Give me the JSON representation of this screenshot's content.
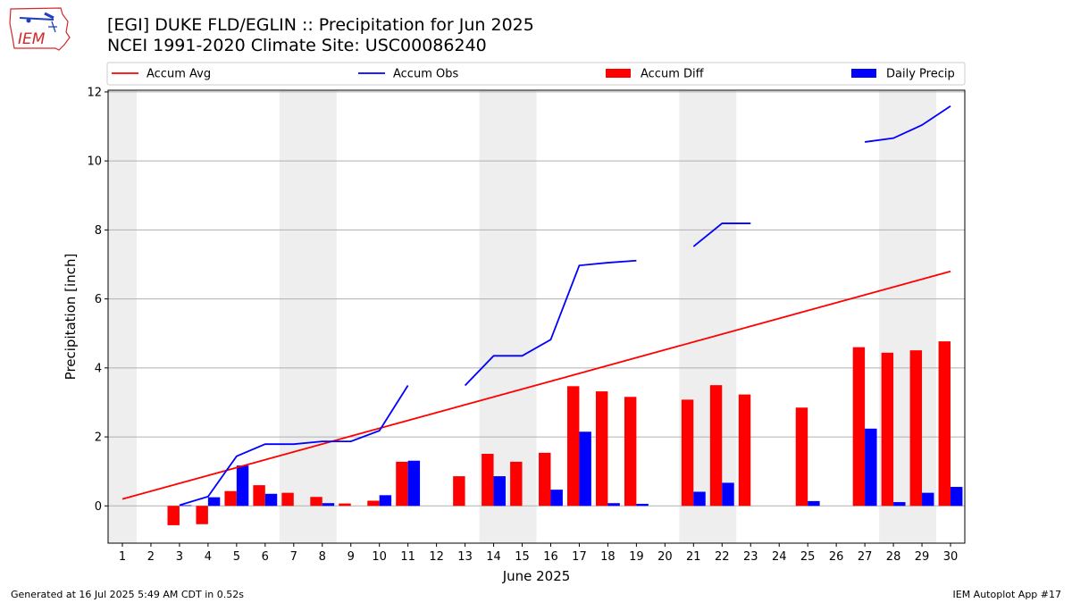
{
  "logo": {
    "text": "IEM",
    "color": "#d62728"
  },
  "title": {
    "line1": "[EGI] DUKE FLD/EGLIN :: Precipitation for Jun 2025",
    "line2": "NCEI 1991-2020 Climate Site: USC00086240"
  },
  "footer": {
    "left": "Generated at 16 Jul 2025 5:49 AM CDT in 0.52s",
    "right": "IEM Autoplot App #17"
  },
  "chart_data": {
    "type": "bar",
    "xlabel": "June 2025",
    "ylabel": "Precipitation [inch]",
    "xlim": [
      0.5,
      30.5
    ],
    "ylim": [
      -1.08,
      12.05
    ],
    "x_ticks": [
      1,
      2,
      3,
      4,
      5,
      6,
      7,
      8,
      9,
      10,
      11,
      12,
      13,
      14,
      15,
      16,
      17,
      18,
      19,
      20,
      21,
      22,
      23,
      24,
      25,
      26,
      27,
      28,
      29,
      30
    ],
    "y_ticks": [
      0,
      2,
      4,
      6,
      8,
      10,
      12
    ],
    "grid": "horizontal",
    "legend_position": "top",
    "weekend_shading": [
      [
        0.5,
        1.5
      ],
      [
        6.5,
        8.5
      ],
      [
        13.5,
        15.5
      ],
      [
        20.5,
        22.5
      ],
      [
        27.5,
        29.5
      ]
    ],
    "series": [
      {
        "name": "Accum Avg",
        "type": "line",
        "color": "#ff0000",
        "x": [
          1,
          30
        ],
        "values": [
          0.2,
          6.8
        ]
      },
      {
        "name": "Accum Obs",
        "type": "line",
        "color": "#0000ff",
        "segments": [
          {
            "x": [
              3,
              4,
              5,
              6,
              7,
              8,
              9,
              10,
              11
            ],
            "values": [
              0.02,
              0.27,
              1.44,
              1.79,
              1.79,
              1.87,
              1.87,
              2.18,
              3.49
            ]
          },
          {
            "x": [
              13,
              14,
              15,
              16,
              17,
              18,
              19
            ],
            "values": [
              3.49,
              4.35,
              4.35,
              4.82,
              6.97,
              7.05,
              7.11
            ]
          },
          {
            "x": [
              21,
              22,
              23
            ],
            "values": [
              7.52,
              8.19,
              8.19
            ]
          },
          {
            "x": [
              27,
              28,
              29,
              30
            ],
            "values": [
              10.55,
              10.66,
              11.04,
              11.59
            ]
          }
        ]
      },
      {
        "name": "Accum Diff",
        "type": "bar",
        "color": "#ff0000",
        "x": [
          3,
          4,
          5,
          6,
          7,
          8,
          9,
          10,
          11,
          13,
          14,
          15,
          16,
          17,
          18,
          19,
          21,
          22,
          23,
          25,
          27,
          28,
          29,
          30
        ],
        "values": [
          -0.56,
          -0.53,
          0.43,
          0.6,
          0.38,
          0.26,
          0.07,
          0.15,
          1.28,
          0.86,
          1.51,
          1.28,
          1.54,
          3.47,
          3.32,
          3.16,
          3.08,
          3.5,
          3.23,
          2.85,
          4.6,
          4.44,
          4.51,
          4.77
        ]
      },
      {
        "name": "Daily Precip",
        "type": "bar",
        "color": "#0000ff",
        "x": [
          3,
          4,
          5,
          6,
          8,
          10,
          11,
          14,
          16,
          17,
          18,
          19,
          21,
          22,
          25,
          27,
          28,
          29,
          30
        ],
        "values": [
          0.02,
          0.25,
          1.17,
          0.35,
          0.08,
          0.31,
          1.31,
          0.86,
          0.47,
          2.15,
          0.08,
          0.06,
          0.41,
          0.67,
          0.14,
          2.24,
          0.11,
          0.38,
          0.55
        ]
      }
    ]
  }
}
